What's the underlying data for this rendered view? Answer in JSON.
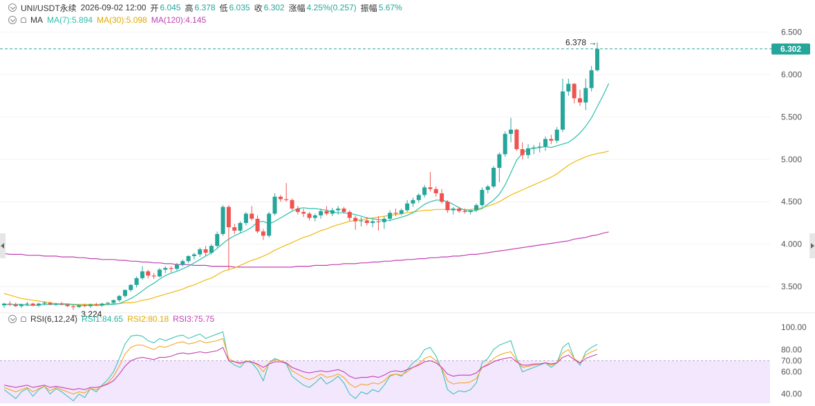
{
  "header": {
    "symbol": "UNI/USDT永续",
    "datetime": "2026-09-02 12:00",
    "open_label": "开",
    "open": "6.045",
    "high_label": "高",
    "high": "6.378",
    "low_label": "低",
    "low": "6.035",
    "close_label": "收",
    "close": "6.302",
    "change_label": "涨幅",
    "change": "4.25%(0.257)",
    "amplitude_label": "振幅",
    "amplitude": "5.67%"
  },
  "ma_legend": {
    "title": "MA",
    "ma7": "MA(7):5.894",
    "ma30": "MA(30):5.098",
    "ma120": "MA(120):4.145"
  },
  "rsi_legend": {
    "title": "RSI(6,12,24)",
    "rsi1": "RSI1:84.65",
    "rsi2": "RSI2:80.18",
    "rsi3": "RSI3:75.75"
  },
  "colors": {
    "up": "#26a69a",
    "down": "#ef5350",
    "ma7": "#2bbfa8",
    "ma30": "#f0b90b",
    "ma120": "#c03fb3",
    "rsi1": "#3cc4b4",
    "rsi2": "#f5a623",
    "rsi3": "#c53fb0",
    "rsi_band": "#f3e7fd"
  },
  "icons": [
    "chevron-down-icon",
    "bell-icon",
    "left-arrow-icon",
    "right-arrow-icon"
  ],
  "chart_data": [
    {
      "type": "candlestick",
      "ylim": [
        3.2,
        6.65
      ],
      "y_ticks": [
        "6.500",
        "6.000",
        "5.500",
        "5.000",
        "4.500",
        "4.000",
        "3.500"
      ],
      "current_price": "6.302",
      "high_marker": "6.378",
      "low_marker": "3.224",
      "ohlc": [
        [
          3.28,
          3.31,
          3.25,
          3.3
        ],
        [
          3.3,
          3.33,
          3.27,
          3.29
        ],
        [
          3.29,
          3.31,
          3.26,
          3.27
        ],
        [
          3.27,
          3.3,
          3.25,
          3.29
        ],
        [
          3.29,
          3.32,
          3.27,
          3.3
        ],
        [
          3.3,
          3.31,
          3.27,
          3.28
        ],
        [
          3.28,
          3.31,
          3.26,
          3.3
        ],
        [
          3.3,
          3.33,
          3.28,
          3.31
        ],
        [
          3.31,
          3.32,
          3.28,
          3.29
        ],
        [
          3.29,
          3.31,
          3.27,
          3.3
        ],
        [
          3.3,
          3.32,
          3.28,
          3.29
        ],
        [
          3.29,
          3.3,
          3.26,
          3.27
        ],
        [
          3.27,
          3.29,
          3.224,
          3.26
        ],
        [
          3.26,
          3.29,
          3.25,
          3.28
        ],
        [
          3.28,
          3.3,
          3.26,
          3.27
        ],
        [
          3.27,
          3.3,
          3.25,
          3.29
        ],
        [
          3.29,
          3.31,
          3.27,
          3.28
        ],
        [
          3.28,
          3.31,
          3.26,
          3.3
        ],
        [
          3.3,
          3.32,
          3.28,
          3.31
        ],
        [
          3.31,
          3.35,
          3.29,
          3.34
        ],
        [
          3.34,
          3.4,
          3.32,
          3.39
        ],
        [
          3.39,
          3.47,
          3.37,
          3.46
        ],
        [
          3.46,
          3.53,
          3.44,
          3.52
        ],
        [
          3.52,
          3.62,
          3.49,
          3.6
        ],
        [
          3.6,
          3.74,
          3.58,
          3.68
        ],
        [
          3.68,
          3.7,
          3.6,
          3.63
        ],
        [
          3.63,
          3.66,
          3.59,
          3.62
        ],
        [
          3.62,
          3.72,
          3.61,
          3.7
        ],
        [
          3.7,
          3.74,
          3.66,
          3.72
        ],
        [
          3.72,
          3.74,
          3.67,
          3.71
        ],
        [
          3.71,
          3.78,
          3.69,
          3.76
        ],
        [
          3.76,
          3.82,
          3.74,
          3.8
        ],
        [
          3.8,
          3.87,
          3.78,
          3.86
        ],
        [
          3.86,
          3.9,
          3.82,
          3.88
        ],
        [
          3.88,
          3.96,
          3.85,
          3.94
        ],
        [
          3.94,
          3.98,
          3.86,
          3.9
        ],
        [
          3.9,
          4.0,
          3.88,
          3.98
        ],
        [
          3.98,
          4.15,
          3.96,
          4.12
        ],
        [
          4.12,
          4.46,
          4.1,
          4.44
        ],
        [
          4.44,
          4.46,
          3.7,
          4.2
        ],
        [
          4.2,
          4.24,
          4.12,
          4.16
        ],
        [
          4.16,
          4.27,
          4.13,
          4.25
        ],
        [
          4.25,
          4.38,
          4.22,
          4.36
        ],
        [
          4.36,
          4.45,
          4.28,
          4.3
        ],
        [
          4.3,
          4.34,
          4.13,
          4.15
        ],
        [
          4.15,
          4.18,
          4.05,
          4.1
        ],
        [
          4.1,
          4.38,
          4.08,
          4.36
        ],
        [
          4.36,
          4.6,
          4.34,
          4.56
        ],
        [
          4.56,
          4.58,
          4.5,
          4.53
        ],
        [
          4.53,
          4.72,
          4.5,
          4.52
        ],
        [
          4.52,
          4.54,
          4.4,
          4.42
        ],
        [
          4.42,
          4.45,
          4.35,
          4.38
        ],
        [
          4.38,
          4.42,
          4.32,
          4.36
        ],
        [
          4.36,
          4.38,
          4.28,
          4.31
        ],
        [
          4.31,
          4.36,
          4.27,
          4.34
        ],
        [
          4.34,
          4.42,
          4.3,
          4.39
        ],
        [
          4.39,
          4.45,
          4.34,
          4.36
        ],
        [
          4.36,
          4.43,
          4.33,
          4.4
        ],
        [
          4.4,
          4.45,
          4.35,
          4.42
        ],
        [
          4.42,
          4.44,
          4.36,
          4.38
        ],
        [
          4.38,
          4.4,
          4.27,
          4.31
        ],
        [
          4.31,
          4.34,
          4.17,
          4.27
        ],
        [
          4.27,
          4.32,
          4.21,
          4.28
        ],
        [
          4.28,
          4.32,
          4.22,
          4.25
        ],
        [
          4.25,
          4.3,
          4.2,
          4.27
        ],
        [
          4.27,
          4.33,
          4.16,
          4.26
        ],
        [
          4.26,
          4.33,
          4.18,
          4.3
        ],
        [
          4.3,
          4.4,
          4.27,
          4.37
        ],
        [
          4.37,
          4.42,
          4.33,
          4.36
        ],
        [
          4.36,
          4.42,
          4.34,
          4.4
        ],
        [
          4.4,
          4.52,
          4.38,
          4.48
        ],
        [
          4.48,
          4.55,
          4.44,
          4.52
        ],
        [
          4.52,
          4.6,
          4.49,
          4.58
        ],
        [
          4.58,
          4.7,
          4.55,
          4.67
        ],
        [
          4.67,
          4.85,
          4.62,
          4.65
        ],
        [
          4.65,
          4.68,
          4.56,
          4.6
        ],
        [
          4.6,
          4.65,
          4.48,
          4.5
        ],
        [
          4.5,
          4.52,
          4.37,
          4.4
        ],
        [
          4.4,
          4.44,
          4.35,
          4.42
        ],
        [
          4.42,
          4.44,
          4.37,
          4.39
        ],
        [
          4.39,
          4.42,
          4.36,
          4.38
        ],
        [
          4.38,
          4.41,
          4.35,
          4.4
        ],
        [
          4.4,
          4.48,
          4.38,
          4.46
        ],
        [
          4.46,
          4.67,
          4.44,
          4.64
        ],
        [
          4.64,
          4.7,
          4.6,
          4.68
        ],
        [
          4.68,
          4.92,
          4.66,
          4.9
        ],
        [
          4.9,
          5.08,
          4.73,
          5.06
        ],
        [
          5.06,
          5.33,
          5.03,
          5.3
        ],
        [
          5.3,
          5.49,
          5.2,
          5.35
        ],
        [
          5.35,
          5.36,
          5.1,
          5.12
        ],
        [
          5.12,
          5.2,
          5.0,
          5.05
        ],
        [
          5.05,
          5.18,
          5.01,
          5.13
        ],
        [
          5.13,
          5.17,
          5.06,
          5.14
        ],
        [
          5.14,
          5.2,
          5.08,
          5.15
        ],
        [
          5.15,
          5.27,
          5.1,
          5.24
        ],
        [
          5.24,
          5.29,
          5.18,
          5.22
        ],
        [
          5.22,
          5.38,
          5.19,
          5.35
        ],
        [
          5.35,
          5.95,
          5.32,
          5.8
        ],
        [
          5.8,
          5.95,
          5.75,
          5.89
        ],
        [
          5.89,
          5.9,
          5.66,
          5.72
        ],
        [
          5.72,
          5.82,
          5.63,
          5.67
        ],
        [
          5.67,
          5.95,
          5.58,
          5.84
        ],
        [
          5.84,
          6.1,
          5.8,
          6.05
        ],
        [
          6.05,
          6.378,
          6.035,
          6.302
        ]
      ],
      "ma7": [
        3.29,
        3.29,
        3.29,
        3.29,
        3.28,
        3.28,
        3.28,
        3.29,
        3.29,
        3.29,
        3.29,
        3.29,
        3.29,
        3.28,
        3.28,
        3.28,
        3.28,
        3.28,
        3.29,
        3.29,
        3.3,
        3.33,
        3.36,
        3.4,
        3.45,
        3.5,
        3.54,
        3.59,
        3.63,
        3.66,
        3.68,
        3.71,
        3.74,
        3.78,
        3.82,
        3.86,
        3.9,
        3.95,
        4.01,
        4.06,
        4.1,
        4.13,
        4.16,
        4.2,
        4.26,
        4.27,
        4.24,
        4.27,
        4.31,
        4.35,
        4.39,
        4.42,
        4.43,
        4.42,
        4.42,
        4.41,
        4.4,
        4.38,
        4.37,
        4.37,
        4.36,
        4.35,
        4.33,
        4.31,
        4.3,
        4.29,
        4.28,
        4.28,
        4.3,
        4.32,
        4.34,
        4.37,
        4.42,
        4.47,
        4.5,
        4.52,
        4.52,
        4.5,
        4.47,
        4.43,
        4.4,
        4.39,
        4.4,
        4.42,
        4.47,
        4.52,
        4.59,
        4.7,
        4.84,
        4.99,
        5.07,
        5.12,
        5.13,
        5.14,
        5.15,
        5.14,
        5.16,
        5.18,
        5.2,
        5.25,
        5.31,
        5.39,
        5.49,
        5.62,
        5.75,
        5.894
      ],
      "ma30": [
        3.42,
        3.4,
        3.38,
        3.36,
        3.35,
        3.34,
        3.33,
        3.32,
        3.31,
        3.3,
        3.3,
        3.3,
        3.29,
        3.29,
        3.29,
        3.29,
        3.29,
        3.29,
        3.29,
        3.3,
        3.3,
        3.31,
        3.31,
        3.32,
        3.34,
        3.35,
        3.37,
        3.39,
        3.41,
        3.43,
        3.45,
        3.47,
        3.5,
        3.52,
        3.55,
        3.58,
        3.6,
        3.64,
        3.68,
        3.7,
        3.72,
        3.75,
        3.78,
        3.81,
        3.83,
        3.86,
        3.89,
        3.93,
        3.96,
        3.99,
        4.02,
        4.05,
        4.08,
        4.1,
        4.13,
        4.16,
        4.18,
        4.21,
        4.23,
        4.25,
        4.27,
        4.28,
        4.29,
        4.3,
        4.31,
        4.32,
        4.33,
        4.34,
        4.35,
        4.36,
        4.37,
        4.38,
        4.39,
        4.4,
        4.4,
        4.41,
        4.41,
        4.41,
        4.41,
        4.41,
        4.41,
        4.41,
        4.42,
        4.43,
        4.45,
        4.47,
        4.5,
        4.54,
        4.58,
        4.61,
        4.64,
        4.67,
        4.7,
        4.73,
        4.76,
        4.79,
        4.83,
        4.88,
        4.93,
        4.97,
        5.0,
        5.03,
        5.05,
        5.07,
        5.08,
        5.098
      ],
      "ma120": [
        3.89,
        3.88,
        3.88,
        3.88,
        3.87,
        3.87,
        3.87,
        3.86,
        3.86,
        3.86,
        3.85,
        3.85,
        3.85,
        3.84,
        3.84,
        3.83,
        3.83,
        3.82,
        3.82,
        3.82,
        3.81,
        3.81,
        3.8,
        3.8,
        3.79,
        3.79,
        3.78,
        3.78,
        3.77,
        3.77,
        3.76,
        3.76,
        3.76,
        3.75,
        3.75,
        3.75,
        3.74,
        3.74,
        3.74,
        3.74,
        3.73,
        3.73,
        3.73,
        3.73,
        3.73,
        3.73,
        3.73,
        3.73,
        3.73,
        3.73,
        3.73,
        3.74,
        3.74,
        3.74,
        3.75,
        3.75,
        3.75,
        3.76,
        3.76,
        3.77,
        3.77,
        3.77,
        3.78,
        3.78,
        3.79,
        3.79,
        3.8,
        3.8,
        3.81,
        3.81,
        3.82,
        3.82,
        3.83,
        3.83,
        3.84,
        3.84,
        3.85,
        3.85,
        3.86,
        3.86,
        3.87,
        3.88,
        3.88,
        3.89,
        3.9,
        3.91,
        3.92,
        3.93,
        3.94,
        3.95,
        3.96,
        3.97,
        3.98,
        3.99,
        4.0,
        4.01,
        4.02,
        4.03,
        4.04,
        4.06,
        4.07,
        4.08,
        4.1,
        4.11,
        4.13,
        4.145
      ]
    },
    {
      "type": "line",
      "ylim": [
        33,
        105
      ],
      "y_ticks": [
        "100.00",
        "80.00",
        "70.00",
        "60.00",
        "40.00"
      ],
      "band": [
        30,
        70
      ],
      "series": [
        {
          "name": "RSI1",
          "values": [
            44,
            40,
            36,
            42,
            45,
            38,
            44,
            47,
            40,
            45,
            42,
            38,
            34,
            40,
            37,
            45,
            42,
            48,
            53,
            60,
            72,
            85,
            92,
            93,
            92,
            88,
            86,
            90,
            88,
            90,
            92,
            93,
            90,
            92,
            94,
            90,
            92,
            94,
            96,
            70,
            66,
            64,
            70,
            68,
            62,
            52,
            68,
            72,
            70,
            67,
            56,
            52,
            48,
            46,
            50,
            55,
            49,
            52,
            56,
            50,
            40,
            36,
            42,
            40,
            44,
            42,
            48,
            56,
            58,
            56,
            62,
            68,
            72,
            80,
            82,
            74,
            62,
            44,
            40,
            43,
            42,
            44,
            50,
            68,
            72,
            80,
            84,
            86,
            88,
            72,
            60,
            62,
            64,
            66,
            68,
            64,
            68,
            82,
            86,
            72,
            66,
            78,
            82,
            84.65
          ]
        },
        {
          "name": "RSI2",
          "values": [
            46,
            44,
            42,
            44,
            46,
            42,
            45,
            47,
            43,
            46,
            44,
            42,
            40,
            42,
            41,
            45,
            44,
            47,
            50,
            56,
            65,
            76,
            82,
            84,
            84,
            82,
            80,
            83,
            82,
            84,
            86,
            87,
            85,
            86,
            88,
            86,
            87,
            88,
            90,
            72,
            69,
            67,
            70,
            69,
            66,
            60,
            68,
            71,
            70,
            68,
            61,
            58,
            55,
            53,
            55,
            58,
            55,
            56,
            58,
            55,
            49,
            46,
            49,
            48,
            50,
            49,
            52,
            57,
            58,
            57,
            60,
            64,
            67,
            72,
            74,
            70,
            63,
            52,
            49,
            50,
            50,
            51,
            54,
            64,
            67,
            72,
            75,
            77,
            78,
            70,
            64,
            65,
            66,
            67,
            68,
            66,
            68,
            77,
            80,
            72,
            68,
            75,
            78,
            80.18
          ]
        },
        {
          "name": "RSI3",
          "values": [
            48,
            47,
            46,
            47,
            48,
            46,
            47,
            48,
            46,
            47,
            46,
            45,
            44,
            45,
            44,
            46,
            46,
            47,
            49,
            52,
            58,
            65,
            70,
            72,
            73,
            72,
            71,
            73,
            73,
            74,
            76,
            77,
            76,
            77,
            78,
            77,
            78,
            79,
            82,
            70,
            69,
            68,
            69,
            69,
            67,
            64,
            67,
            69,
            69,
            68,
            64,
            62,
            60,
            59,
            60,
            61,
            60,
            61,
            62,
            60,
            56,
            54,
            55,
            55,
            56,
            55,
            57,
            60,
            61,
            60,
            62,
            64,
            66,
            69,
            70,
            68,
            64,
            58,
            56,
            57,
            57,
            57,
            59,
            64,
            66,
            69,
            71,
            72,
            73,
            69,
            66,
            66,
            67,
            67,
            68,
            67,
            68,
            73,
            75,
            71,
            68,
            72,
            74,
            75.75
          ]
        }
      ]
    }
  ]
}
